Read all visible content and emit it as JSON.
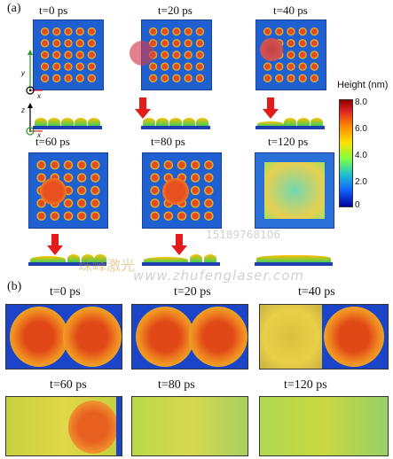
{
  "panel_a_label": "(a)",
  "panel_b_label": "(b)",
  "times_a": [
    "t=0 ps",
    "t=20 ps",
    "t=40 ps",
    "t=60 ps",
    "t=80 ps",
    "t=120 ps"
  ],
  "times_b": [
    "t=0 ps",
    "t=20 ps",
    "t=40 ps",
    "t=60  ps",
    "t=80  ps",
    "t=120  ps"
  ],
  "colorbar": {
    "title": "Height (nm)",
    "ticks": [
      "8.0",
      "6.0",
      "4.0",
      "2.0",
      "0"
    ]
  },
  "axes": {
    "y": "y",
    "x": "x",
    "z": "z"
  },
  "watermark": {
    "cn": "珠峰激光",
    "phone": "15189768106",
    "url": "www.zhufenglaser.com"
  }
}
